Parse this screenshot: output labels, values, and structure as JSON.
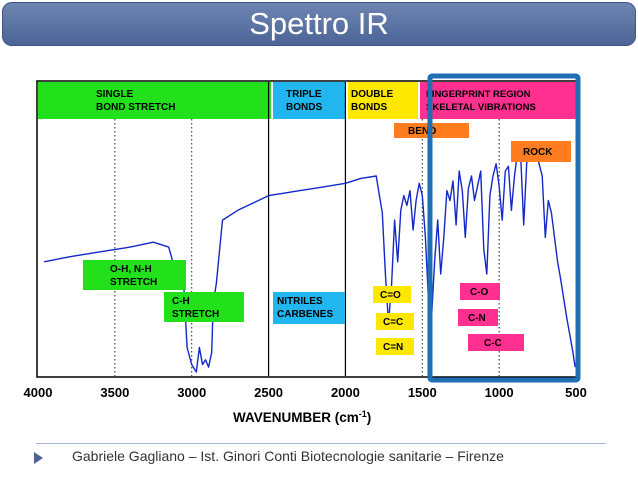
{
  "slide": {
    "title": "Spettro IR"
  },
  "footer": {
    "text": "Gabriele Gagliano – Ist. Ginori Conti Biotecnologie sanitarie – Firenze"
  },
  "regions": {
    "single": {
      "line1": "SINGLE",
      "line2": "BOND STRETCH",
      "color": "#22e01a"
    },
    "triple": {
      "line1": "TRIPLE",
      "line2": "BONDS",
      "color": "#22b6f0"
    },
    "double": {
      "line1": "DOUBLE",
      "line2": "BONDS",
      "color": "#ffe800"
    },
    "fingerprint": {
      "line1": "FINGERPRINT REGION",
      "line2": "SKELETAL VIBRATIONS",
      "color": "#ff3090"
    }
  },
  "labels": {
    "bend": "BEND",
    "rock": "ROCK",
    "oh_nh_1": "O-H, N-H",
    "oh_nh_2": "STRETCH",
    "ch_1": "C-H",
    "ch_2": "STRETCH",
    "nitriles_1": "NITRILES",
    "nitriles_2": "CARBENES",
    "co_double": "C=O",
    "cc_double": "C=C",
    "cn_double": "C=N",
    "co_single": "C-O",
    "cn_single": "C-N",
    "cc_single": "C-C"
  },
  "colors": {
    "orange": "#ff7d1e",
    "green": "#22e01a",
    "blue": "#22b6f0",
    "yellow": "#ffe800",
    "pink": "#ff3090",
    "trace": "#1428c8",
    "highlight": "#1f6fb5"
  },
  "chart_data": {
    "type": "line",
    "xlabel_main": "WAVENUMBER (cm",
    "xlabel_sup": "-1",
    "xlabel_end": ")",
    "x_ticks": [
      "4000",
      "3500",
      "3000",
      "2500",
      "2000",
      "1500",
      "1000",
      "500"
    ],
    "xlim": [
      4000,
      500
    ],
    "y_axis": "transmittance (unlabeled)",
    "grid": "dotted vertical lines at 3500, 3000, 2000, 1500, 1000",
    "highlight_range": [
      1450,
      500
    ],
    "series": [
      {
        "x": [
          3960,
          3800,
          3600,
          3400,
          3250,
          3150,
          3100,
          3060,
          3030,
          3000,
          2970,
          2950,
          2930,
          2910,
          2890,
          2870,
          2860,
          2840,
          2800,
          2700,
          2600,
          2500,
          2400,
          2300,
          2200,
          2100,
          2000,
          1900,
          1800,
          1760,
          1740,
          1720,
          1700,
          1680,
          1660,
          1640,
          1620,
          1600,
          1580,
          1560,
          1540,
          1520,
          1500,
          1480,
          1460,
          1440,
          1420,
          1400,
          1380,
          1360,
          1340,
          1320,
          1300,
          1280,
          1260,
          1240,
          1220,
          1200,
          1180,
          1160,
          1140,
          1120,
          1100,
          1080,
          1060,
          1040,
          1020,
          1000,
          980,
          960,
          940,
          920,
          900,
          880,
          860,
          840,
          820,
          800,
          780,
          760,
          740,
          720,
          700,
          680,
          660,
          640,
          620,
          600,
          580,
          560,
          540,
          520,
          505
        ],
        "y": [
          0.45,
          0.47,
          0.49,
          0.51,
          0.53,
          0.51,
          0.4,
          0.45,
          0.1,
          0.03,
          0.0,
          0.1,
          0.03,
          0.05,
          0.02,
          0.08,
          0.28,
          0.36,
          0.62,
          0.66,
          0.69,
          0.72,
          0.73,
          0.74,
          0.75,
          0.76,
          0.77,
          0.79,
          0.8,
          0.65,
          0.4,
          0.2,
          0.35,
          0.62,
          0.45,
          0.66,
          0.72,
          0.68,
          0.74,
          0.58,
          0.7,
          0.77,
          0.72,
          0.55,
          0.3,
          0.22,
          0.45,
          0.62,
          0.4,
          0.55,
          0.74,
          0.7,
          0.78,
          0.6,
          0.82,
          0.74,
          0.55,
          0.75,
          0.8,
          0.7,
          0.76,
          0.82,
          0.5,
          0.4,
          0.72,
          0.8,
          0.85,
          0.76,
          0.62,
          0.82,
          0.84,
          0.66,
          0.8,
          0.9,
          0.88,
          0.6,
          0.86,
          0.88,
          0.9,
          0.9,
          0.85,
          0.8,
          0.55,
          0.7,
          0.65,
          0.55,
          0.45,
          0.38,
          0.3,
          0.22,
          0.15,
          0.08,
          0.02
        ]
      }
    ]
  }
}
